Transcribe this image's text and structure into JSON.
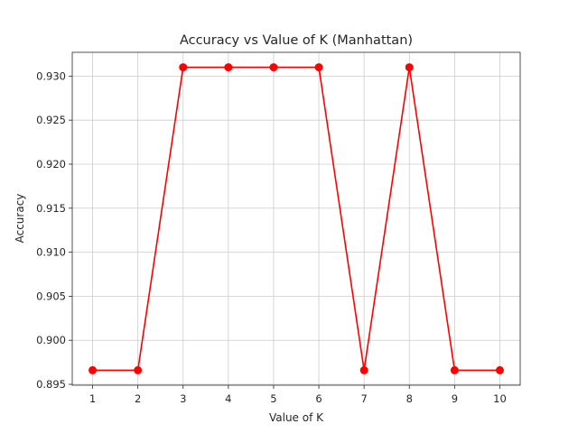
{
  "chart_data": {
    "type": "line",
    "title": "Accuracy vs Value of K (Manhattan)",
    "xlabel": "Value of K",
    "ylabel": "Accuracy",
    "x": [
      1,
      2,
      3,
      4,
      5,
      6,
      7,
      8,
      9,
      10
    ],
    "series": [
      {
        "values": [
          0.8966,
          0.8966,
          0.931,
          0.931,
          0.931,
          0.931,
          0.8966,
          0.931,
          0.8966,
          0.8966
        ],
        "color": "#ff0000",
        "marker": "circle"
      }
    ],
    "xticks": [
      "1",
      "2",
      "3",
      "4",
      "5",
      "6",
      "7",
      "8",
      "9",
      "10"
    ],
    "yticks": [
      0.895,
      0.9,
      0.905,
      0.91,
      0.915,
      0.92,
      0.925,
      0.93
    ],
    "ytick_labels": [
      "0.895",
      "0.900",
      "0.905",
      "0.910",
      "0.915",
      "0.920",
      "0.925",
      "0.930"
    ],
    "xlim": [
      0.55,
      10.45
    ],
    "ylim": [
      0.8949,
      0.9327
    ],
    "grid": true
  }
}
